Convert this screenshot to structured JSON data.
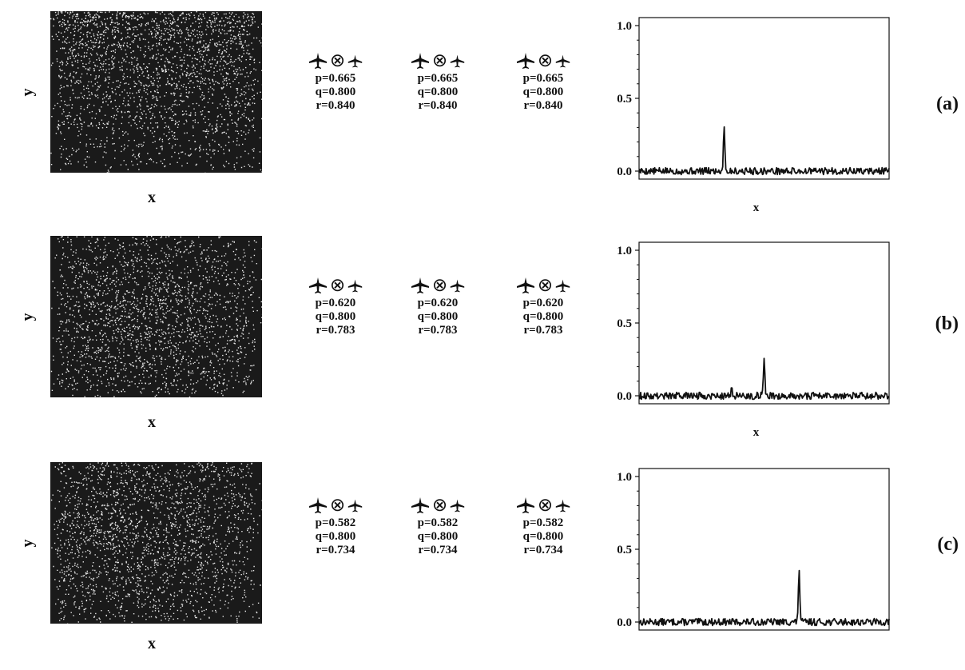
{
  "panels": [
    {
      "label": "(a)",
      "p": "p=0.665",
      "q": "q=0.800",
      "r": "r=0.840",
      "seed": 11,
      "gradient": "top"
    },
    {
      "label": "(b)",
      "p": "p=0.620",
      "q": "q=0.800",
      "r": "r=0.783",
      "seed": 23,
      "gradient": "center"
    },
    {
      "label": "(c)",
      "p": "p=0.582",
      "q": "q=0.800",
      "r": "r=0.734",
      "seed": 37,
      "gradient": "upper-left"
    }
  ],
  "speckle_axes": {
    "xlabel": "x",
    "ylabel": "y"
  },
  "chart_data": [
    {
      "type": "line",
      "panel": "(a)",
      "xlabel": "x",
      "ylabel": "",
      "yticks": [
        "0.0",
        "0.5",
        "1.0"
      ],
      "ylim": [
        0,
        1.0
      ],
      "peaks": [
        {
          "x": 0.34,
          "y": 0.32
        }
      ],
      "noise": 0.03,
      "seed": 5
    },
    {
      "type": "line",
      "panel": "(b)",
      "xlabel": "x",
      "ylabel": "",
      "yticks": [
        "0.0",
        "0.5",
        "1.0"
      ],
      "ylim": [
        0,
        1.0
      ],
      "peaks": [
        {
          "x": 0.5,
          "y": 0.27
        },
        {
          "x": 0.37,
          "y": 0.05
        }
      ],
      "noise": 0.03,
      "seed": 9
    },
    {
      "type": "line",
      "panel": "(c)",
      "xlabel": "x",
      "ylabel": "",
      "yticks": [
        "0.0",
        "0.5",
        "1.0"
      ],
      "ylim": [
        0,
        1.0
      ],
      "peaks": [
        {
          "x": 0.64,
          "y": 0.37
        }
      ],
      "noise": 0.03,
      "seed": 13
    }
  ]
}
